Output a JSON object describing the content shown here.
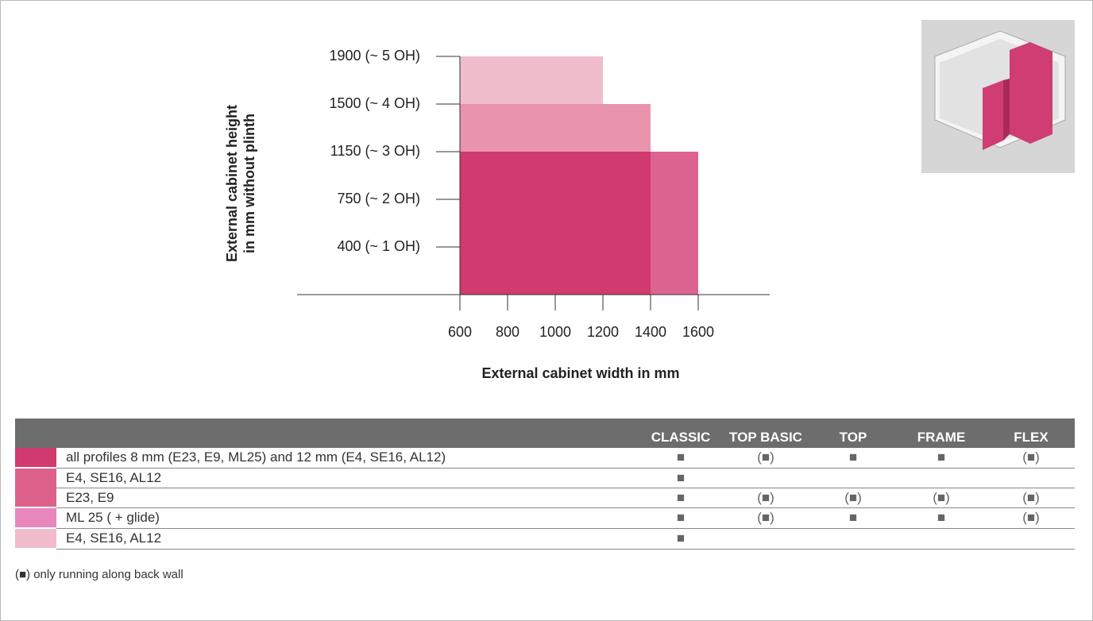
{
  "chart_data": {
    "type": "blocks",
    "y_axis_label": [
      "External cabinet height",
      "in mm without plinth"
    ],
    "x_axis_label": "External cabinet width in mm",
    "xlim": [
      600,
      1900
    ],
    "xticks": [
      600,
      800,
      1000,
      1200,
      1400,
      1600
    ],
    "ylim": [
      0,
      5
    ],
    "yticks": [
      {
        "value": 1,
        "label": "400 (~ 1 OH)"
      },
      {
        "value": 2,
        "label": "750 (~ 2 OH)"
      },
      {
        "value": 3,
        "label": "1150 (~ 3 OH)"
      },
      {
        "value": 4,
        "label": "1500 (~ 4 OH)"
      },
      {
        "value": 5,
        "label": "1900 (~ 5 OH)"
      }
    ],
    "blocks": [
      {
        "color": "#d13a6e",
        "x": [
          600,
          1400
        ],
        "y": [
          0,
          3
        ]
      },
      {
        "color": "#dd6490",
        "x": [
          1400,
          1600
        ],
        "y": [
          0,
          3
        ]
      },
      {
        "color": "#e993ac",
        "x": [
          600,
          1400
        ],
        "y": [
          3,
          4
        ]
      },
      {
        "color": "#efbccb",
        "x": [
          600,
          1200
        ],
        "y": [
          4,
          5
        ]
      }
    ]
  },
  "table": {
    "columns": [
      "CLASSIC",
      "TOP BASIC",
      "TOP",
      "FRAME",
      "FLEX"
    ],
    "groups": [
      {
        "color": "#d13a6e",
        "rows": [
          {
            "label": "all profiles 8 mm (E23, E9, ML25) and 12 mm (E4, SE16, AL12)",
            "cells": [
              "■",
              "(■)",
              "■",
              "■",
              "(■)"
            ]
          }
        ]
      },
      {
        "color": "#dc628c",
        "rows": [
          {
            "label": "E4, SE16, AL12",
            "cells": [
              "■",
              null,
              null,
              null,
              null
            ]
          },
          {
            "label": "E23, E9",
            "cells": [
              "■",
              "(■)",
              "(■)",
              "(■)",
              "(■)"
            ]
          }
        ]
      },
      {
        "color": "#e986bd",
        "rows": [
          {
            "label": "ML 25 ( + glide)",
            "cells": [
              "■",
              "(■)",
              "■",
              "■",
              "(■)"
            ]
          }
        ]
      },
      {
        "color": "#f0bccb",
        "rows": [
          {
            "label": "E4, SE16, AL12",
            "cells": [
              "■",
              null,
              null,
              null,
              null
            ]
          }
        ]
      }
    ],
    "footnote": "(■) only running along back wall"
  }
}
